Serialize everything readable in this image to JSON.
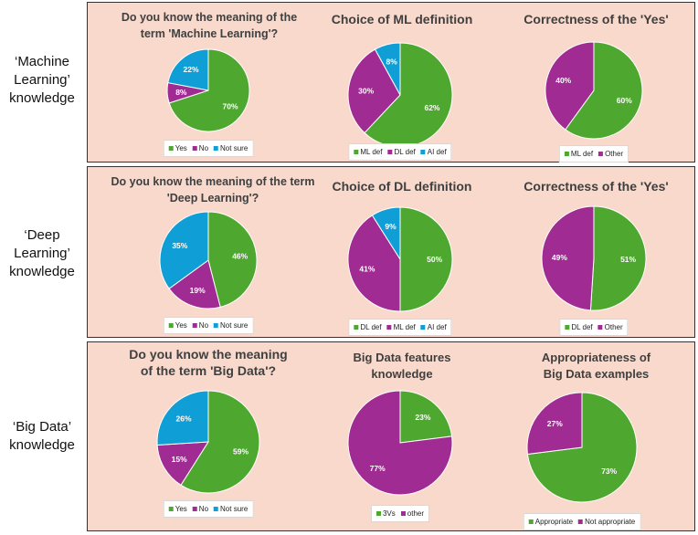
{
  "colors": {
    "green": "#4ea72e",
    "purple": "#a02b93",
    "blue": "#0f9ed5"
  },
  "rows": [
    {
      "label": "‘Machine\nLearning’\nknowledge",
      "charts": [
        {
          "type": "pie",
          "title": "Do you know the meaning of the\nterm 'Machine Learning'?",
          "categories": [
            "Yes",
            "No",
            "Not sure"
          ],
          "values": [
            70,
            8,
            22
          ],
          "labels": [
            "70%",
            "8%",
            "22%"
          ],
          "legend": [
            "Yes",
            "No",
            "Not sure"
          ]
        },
        {
          "type": "pie",
          "title": "Choice of ML definition",
          "categories": [
            "ML def",
            "DL def",
            "AI def"
          ],
          "values": [
            62,
            30,
            8
          ],
          "labels": [
            "62%",
            "30%",
            "8%"
          ],
          "legend": [
            "ML def",
            "DL def",
            "AI def"
          ]
        },
        {
          "type": "pie",
          "title": "Correctness of the 'Yes'",
          "categories": [
            "ML def",
            "Other"
          ],
          "values": [
            60,
            40
          ],
          "labels": [
            "60%",
            "40%"
          ],
          "legend": [
            "ML def",
            "Other"
          ]
        }
      ]
    },
    {
      "label": "‘Deep\nLearning’\nknowledge",
      "charts": [
        {
          "type": "pie",
          "title": "Do you know the meaning of the term\n'Deep Learning'?",
          "categories": [
            "Yes",
            "No",
            "Not sure"
          ],
          "values": [
            46,
            19,
            35
          ],
          "labels": [
            "46%",
            "19%",
            "35%"
          ],
          "legend": [
            "Yes",
            "No",
            "Not sure"
          ]
        },
        {
          "type": "pie",
          "title": "Choice of DL definition",
          "categories": [
            "DL def",
            "ML def",
            "AI def"
          ],
          "values": [
            50,
            41,
            9
          ],
          "labels": [
            "50%",
            "41%",
            "9%"
          ],
          "legend": [
            "DL def",
            "ML def",
            "AI def"
          ]
        },
        {
          "type": "pie",
          "title": "Correctness of the 'Yes'",
          "categories": [
            "DL def",
            "Other"
          ],
          "values": [
            51,
            49
          ],
          "labels": [
            "51%",
            "49%"
          ],
          "legend": [
            "DL def",
            "Other"
          ]
        }
      ]
    },
    {
      "label": "‘Big Data’\nknowledge",
      "charts": [
        {
          "type": "pie",
          "title": "Do you know the meaning\nof the term 'Big Data'?",
          "categories": [
            "Yes",
            "No",
            "Not sure"
          ],
          "values": [
            59,
            15,
            26
          ],
          "labels": [
            "59%",
            "15%",
            "26%"
          ],
          "legend": [
            "Yes",
            "No",
            "Not sure"
          ]
        },
        {
          "type": "pie",
          "title": "Big Data features\nknowledge",
          "categories": [
            "3Vs",
            "other"
          ],
          "values": [
            23,
            77
          ],
          "labels": [
            "23%",
            "77%"
          ],
          "legend": [
            "3Vs",
            "other"
          ]
        },
        {
          "type": "pie",
          "title": "Appropriateness of\nBig Data examples",
          "categories": [
            "Appropriate",
            "Not appropriate"
          ],
          "values": [
            73,
            27
          ],
          "labels": [
            "73%",
            "27%"
          ],
          "legend": [
            "Appropriate",
            "Not appropriate"
          ]
        }
      ]
    }
  ],
  "chart_data": [
    {
      "type": "pie",
      "title": "Do you know the meaning of the term 'Machine Learning'?",
      "categories": [
        "Yes",
        "No",
        "Not sure"
      ],
      "values": [
        70,
        8,
        22
      ]
    },
    {
      "type": "pie",
      "title": "Choice of ML definition",
      "categories": [
        "ML def",
        "DL def",
        "AI def"
      ],
      "values": [
        62,
        30,
        8
      ]
    },
    {
      "type": "pie",
      "title": "Correctness of the 'Yes'",
      "categories": [
        "ML def",
        "Other"
      ],
      "values": [
        60,
        40
      ]
    },
    {
      "type": "pie",
      "title": "Do you know the meaning of the term 'Deep Learning'?",
      "categories": [
        "Yes",
        "No",
        "Not sure"
      ],
      "values": [
        46,
        19,
        35
      ]
    },
    {
      "type": "pie",
      "title": "Choice of DL definition",
      "categories": [
        "DL def",
        "ML def",
        "AI def"
      ],
      "values": [
        50,
        41,
        9
      ]
    },
    {
      "type": "pie",
      "title": "Correctness of the 'Yes'",
      "categories": [
        "DL def",
        "Other"
      ],
      "values": [
        51,
        49
      ]
    },
    {
      "type": "pie",
      "title": "Do you know the meaning of the term 'Big Data'?",
      "categories": [
        "Yes",
        "No",
        "Not sure"
      ],
      "values": [
        59,
        15,
        26
      ]
    },
    {
      "type": "pie",
      "title": "Big Data features knowledge",
      "categories": [
        "3Vs",
        "other"
      ],
      "values": [
        23,
        77
      ]
    },
    {
      "type": "pie",
      "title": "Appropriateness of Big Data examples",
      "categories": [
        "Appropriate",
        "Not appropriate"
      ],
      "values": [
        73,
        27
      ]
    }
  ]
}
